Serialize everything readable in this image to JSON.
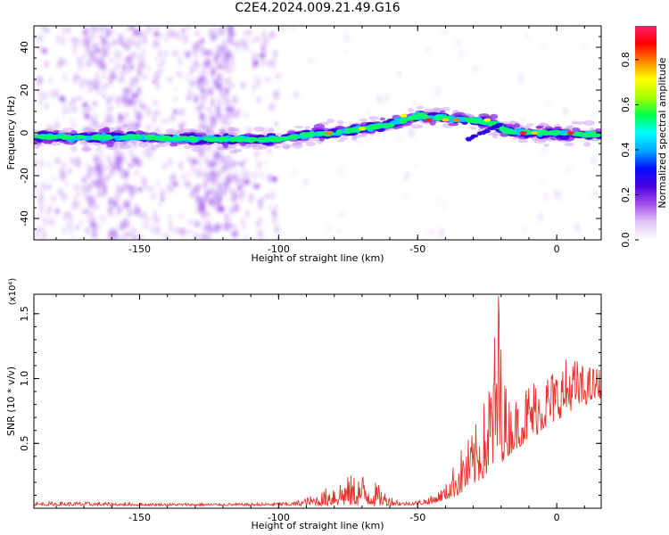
{
  "title": "C2E4.2024.009.21.49.G16",
  "chart_data": [
    {
      "type": "heatmap",
      "xlabel": "Height of straight line (km)",
      "ylabel": "Frequency (Hz)",
      "xlim": [
        -188,
        16
      ],
      "ylim": [
        -50,
        50
      ],
      "xticks": [
        -150,
        -100,
        -50,
        0
      ],
      "xtick_labels": [
        "-150",
        "-100",
        "-50",
        "0"
      ],
      "yticks": [
        -40,
        -20,
        0,
        20,
        40
      ],
      "ytick_labels": [
        "-40",
        "-20",
        "0",
        "20",
        "40"
      ],
      "colorbar": {
        "label": "Normalized spectral amplitude",
        "range": [
          0.0,
          0.95
        ],
        "ticks": [
          0.0,
          0.2,
          0.4,
          0.6,
          0.8
        ],
        "tick_labels": [
          "0.0",
          "0.2",
          "0.4",
          "0.6",
          "0.8"
        ],
        "colormap": [
          "#ffffff",
          "#e3c5f5",
          "#a250ec",
          "#4b00e0",
          "#0010ff",
          "#00a8ff",
          "#00ffff",
          "#00ff44",
          "#a8ff00",
          "#ffff00",
          "#ff8800",
          "#ff0000",
          "#ff1e6c"
        ]
      },
      "ridge": {
        "x": [
          -188,
          -170,
          -150,
          -130,
          -110,
          -100,
          -90,
          -80,
          -70,
          -60,
          -50,
          -40,
          -30,
          -22,
          -18,
          -10,
          0,
          16
        ],
        "y": [
          -2,
          -2,
          -2,
          -3,
          -3,
          -3,
          -1,
          0,
          2,
          4,
          8,
          7,
          6,
          4,
          1,
          0,
          0,
          -1
        ]
      }
    },
    {
      "type": "line",
      "xlabel": "Height of straight line (km)",
      "ylabel": "SNR (10 * v/v)",
      "scale_label": "(x10⁴)",
      "xlim": [
        -188,
        16
      ],
      "ylim": [
        0,
        1.65
      ],
      "xticks": [
        -150,
        -100,
        -50,
        0
      ],
      "xtick_labels": [
        "-150",
        "-100",
        "-50",
        "0"
      ],
      "yticks": [
        0.5,
        1.0,
        1.5
      ],
      "ytick_labels": [
        "0.5",
        "1.0",
        "1.5"
      ],
      "color": "#e8332c",
      "envelope": {
        "x": [
          -188,
          -170,
          -150,
          -130,
          -110,
          -95,
          -85,
          -80,
          -75,
          -70,
          -65,
          -60,
          -55,
          -50,
          -45,
          -40,
          -35,
          -30,
          -25,
          -21,
          -18,
          -15,
          -10,
          -5,
          0,
          5,
          10,
          16
        ],
        "y": [
          0.05,
          0.05,
          0.04,
          0.04,
          0.04,
          0.05,
          0.12,
          0.22,
          0.25,
          0.28,
          0.2,
          0.1,
          0.05,
          0.06,
          0.1,
          0.18,
          0.45,
          0.6,
          0.9,
          1.65,
          0.9,
          0.85,
          1.0,
          1.05,
          1.1,
          1.2,
          1.1,
          1.1
        ]
      },
      "baseline": {
        "x": [
          -188,
          -100,
          -60,
          -45,
          -35,
          -25,
          -15,
          -5,
          5,
          16
        ],
        "y": [
          0.02,
          0.02,
          0.02,
          0.03,
          0.1,
          0.25,
          0.45,
          0.6,
          0.75,
          0.85
        ]
      }
    }
  ]
}
